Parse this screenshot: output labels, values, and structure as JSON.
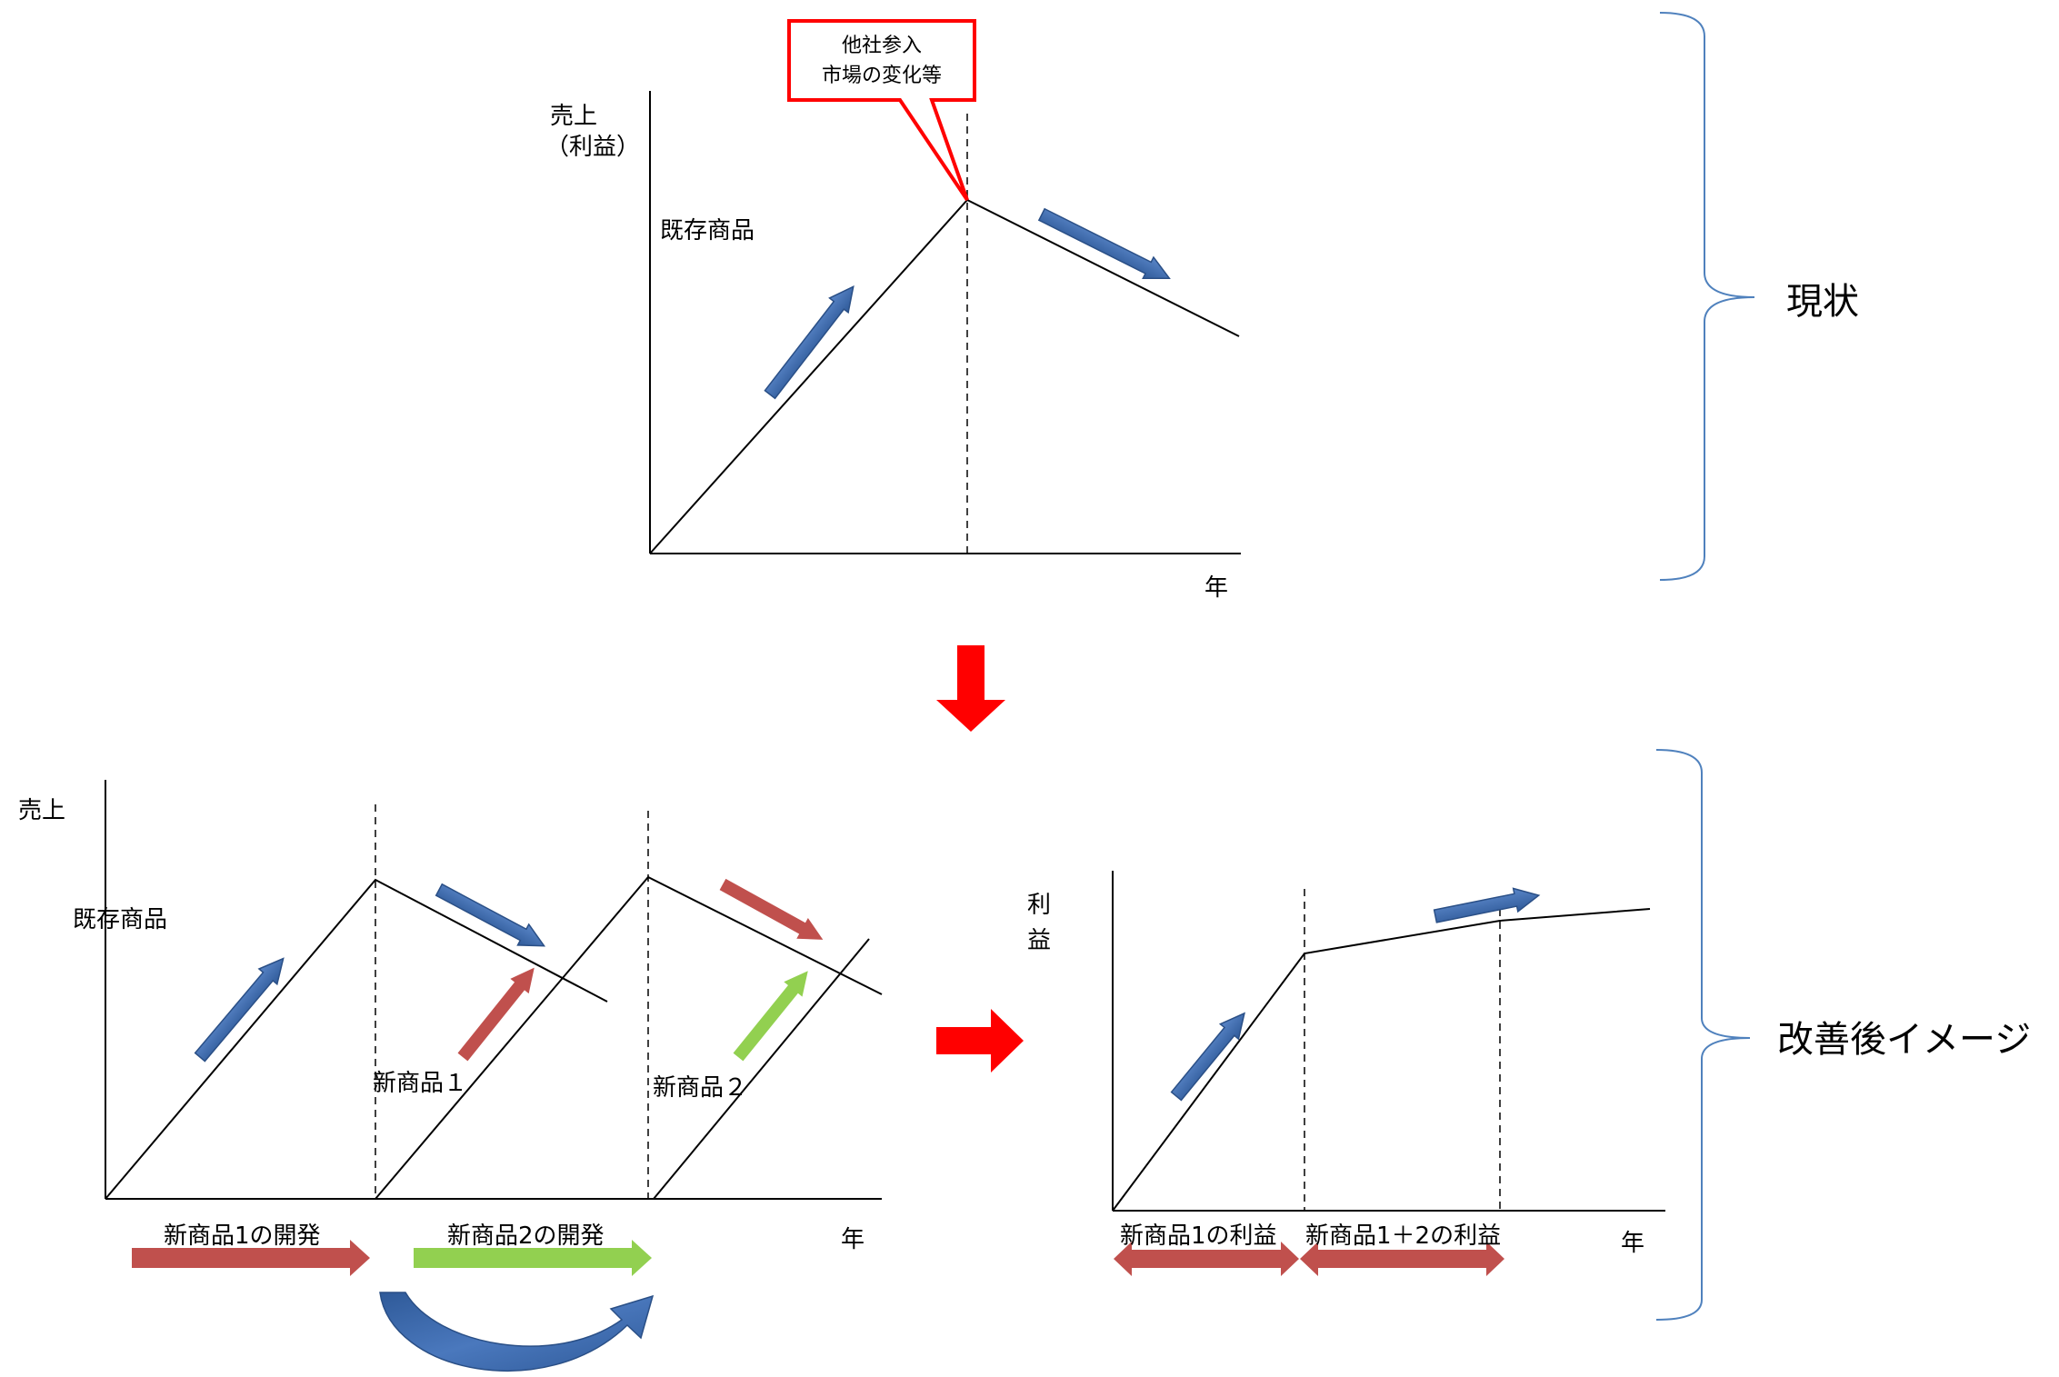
{
  "top_chart": {
    "y_label_line1": "売上",
    "y_label_line2": "（利益）",
    "x_label": "年",
    "product_label": "既存商品",
    "callout_line1": "他社参入",
    "callout_line2": "市場の変化等"
  },
  "bottom_left_chart": {
    "y_label": "売上",
    "x_label": "年",
    "existing_label": "既存商品",
    "new1_label": "新商品１",
    "new2_label": "新商品２",
    "dev1_label": "新商品1の開発",
    "dev2_label": "新商品2の開発"
  },
  "bottom_right_chart": {
    "y_label_char1": "利",
    "y_label_char2": "益",
    "x_label": "年",
    "profit1_label": "新商品1の利益",
    "profit12_label": "新商品1＋2の利益"
  },
  "brackets": {
    "current_label": "現状",
    "improved_label": "改善後イメージ"
  },
  "colors": {
    "blue_arrow": "#3d6bb0",
    "red_arrow": "#c0504d",
    "green_arrow": "#92d050",
    "bright_red": "#ff0000",
    "bracket": "#4f81bd"
  }
}
